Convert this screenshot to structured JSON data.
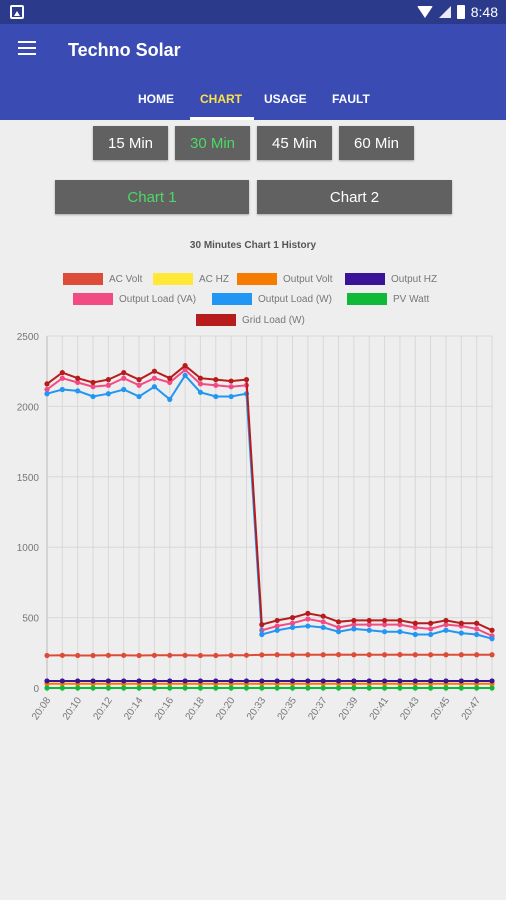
{
  "status_bar": {
    "time": "8:48"
  },
  "app": {
    "title": "Techno Solar"
  },
  "tabs": [
    {
      "label": "HOME",
      "active": false
    },
    {
      "label": "CHART",
      "active": true
    },
    {
      "label": "USAGE",
      "active": false
    },
    {
      "label": "FAULT",
      "active": false
    }
  ],
  "interval_buttons": [
    {
      "label": "15 Min",
      "active": false
    },
    {
      "label": "30 Min",
      "active": true
    },
    {
      "label": "45 Min",
      "active": false
    },
    {
      "label": "60 Min",
      "active": false
    }
  ],
  "chart_buttons": [
    {
      "label": "Chart 1",
      "active": true
    },
    {
      "label": "Chart 2",
      "active": false
    }
  ],
  "colors": {
    "appbar": "#3a4bb4",
    "statusbar": "#2c3a8c",
    "active_tab": "#fde245",
    "active_button_text": "#4cd964",
    "button_bg": "#616161"
  },
  "chart_data": {
    "type": "line",
    "title": "30 Minutes Chart 1 History",
    "categories": [
      "20:08",
      "",
      "20:10",
      "",
      "20:12",
      "",
      "20:14",
      "",
      "20:16",
      "",
      "20:18",
      "",
      "20:20",
      "",
      "20:33",
      "",
      "20:35",
      "",
      "20:37",
      "",
      "20:39",
      "",
      "20:41",
      "",
      "20:43",
      "",
      "20:45",
      "",
      "20:47",
      ""
    ],
    "ylim": [
      0,
      2500
    ],
    "yticks": [
      0,
      500,
      1000,
      1500,
      2000,
      2500
    ],
    "grid": true,
    "legend_position": "top",
    "series": [
      {
        "name": "AC Volt",
        "color": "#dd4b39",
        "values": [
          231,
          232,
          231,
          231,
          232,
          232,
          231,
          232,
          232,
          232,
          231,
          231,
          232,
          233,
          235,
          236,
          236,
          236,
          236,
          237,
          236,
          236,
          236,
          237,
          236,
          236,
          236,
          236,
          236,
          236
        ]
      },
      {
        "name": "AC HZ",
        "color": "#ffe838",
        "values": [
          50,
          50,
          50,
          50,
          50,
          50,
          50,
          50,
          50,
          50,
          50,
          50,
          50,
          50,
          50,
          50,
          50,
          50,
          50,
          50,
          50,
          50,
          50,
          50,
          50,
          50,
          50,
          50,
          50,
          50
        ]
      },
      {
        "name": "Output Volt",
        "color": "#f57c00",
        "values": [
          30,
          30,
          30,
          30,
          30,
          30,
          30,
          30,
          30,
          30,
          30,
          30,
          30,
          30,
          30,
          30,
          30,
          30,
          30,
          30,
          30,
          30,
          30,
          30,
          30,
          30,
          30,
          30,
          30,
          30
        ]
      },
      {
        "name": "Output HZ",
        "color": "#3a1496",
        "values": [
          50,
          50,
          50,
          50,
          50,
          50,
          50,
          50,
          50,
          50,
          50,
          50,
          50,
          50,
          50,
          50,
          50,
          50,
          50,
          50,
          50,
          50,
          50,
          50,
          50,
          50,
          50,
          50,
          50,
          50
        ]
      },
      {
        "name": "Output Load (VA)",
        "color": "#f24b83",
        "values": [
          2120,
          2200,
          2170,
          2140,
          2150,
          2200,
          2150,
          2200,
          2170,
          2260,
          2160,
          2150,
          2140,
          2150,
          410,
          440,
          460,
          490,
          470,
          430,
          450,
          450,
          450,
          450,
          430,
          420,
          450,
          440,
          420,
          370
        ]
      },
      {
        "name": "Output Load (W)",
        "color": "#2196f3",
        "values": [
          2090,
          2120,
          2110,
          2070,
          2090,
          2120,
          2070,
          2140,
          2050,
          2220,
          2100,
          2070,
          2070,
          2090,
          380,
          410,
          430,
          440,
          430,
          400,
          420,
          410,
          400,
          400,
          380,
          380,
          410,
          390,
          380,
          350
        ]
      },
      {
        "name": "PV Watt",
        "color": "#11b93b",
        "values": [
          0,
          0,
          0,
          0,
          0,
          0,
          0,
          0,
          0,
          0,
          0,
          0,
          0,
          0,
          0,
          0,
          0,
          0,
          0,
          0,
          0,
          0,
          0,
          0,
          0,
          0,
          0,
          0,
          0,
          0
        ]
      },
      {
        "name": "Grid Load (W)",
        "color": "#b71c1c",
        "values": [
          2160,
          2240,
          2200,
          2170,
          2190,
          2240,
          2190,
          2250,
          2200,
          2290,
          2200,
          2190,
          2180,
          2190,
          450,
          480,
          500,
          530,
          510,
          470,
          480,
          480,
          480,
          480,
          460,
          460,
          480,
          460,
          460,
          410
        ]
      }
    ]
  }
}
